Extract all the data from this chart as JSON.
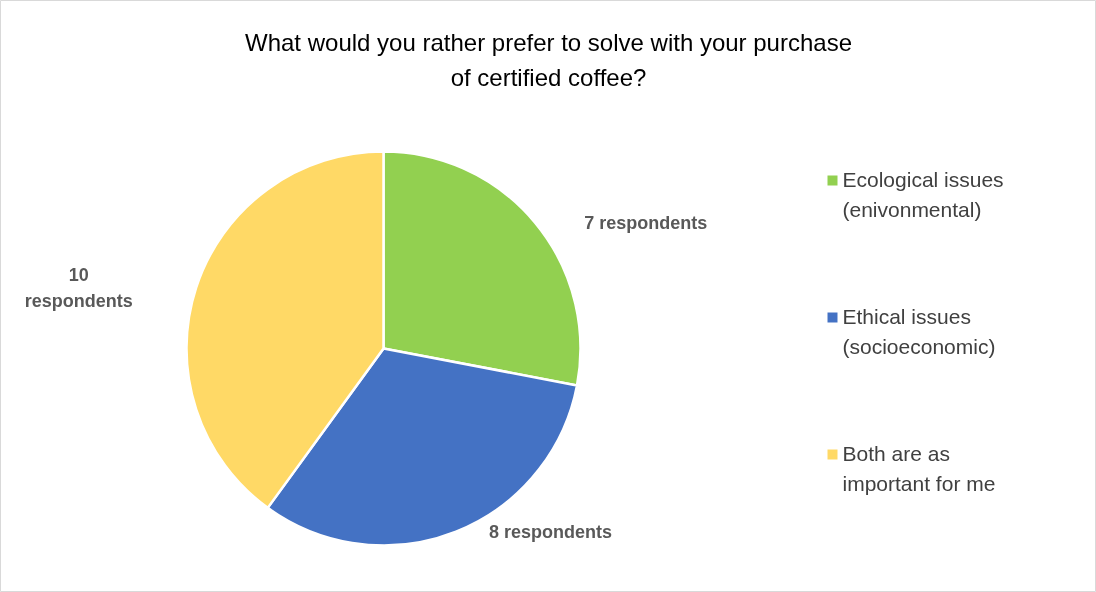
{
  "chart_data": {
    "type": "pie",
    "title": "What would you rather prefer to solve with your purchase of certified coffee?",
    "categories": [
      "Ecological issues (enivonmental)",
      "Ethical issues (socioeconomic)",
      "Both are as important for me"
    ],
    "values": [
      7,
      8,
      10
    ],
    "colors": [
      "#92d050",
      "#4472c4",
      "#ffd966"
    ],
    "value_labels": [
      "7 respondents",
      "8 respondents",
      "10 respondents"
    ],
    "legend": "right"
  }
}
